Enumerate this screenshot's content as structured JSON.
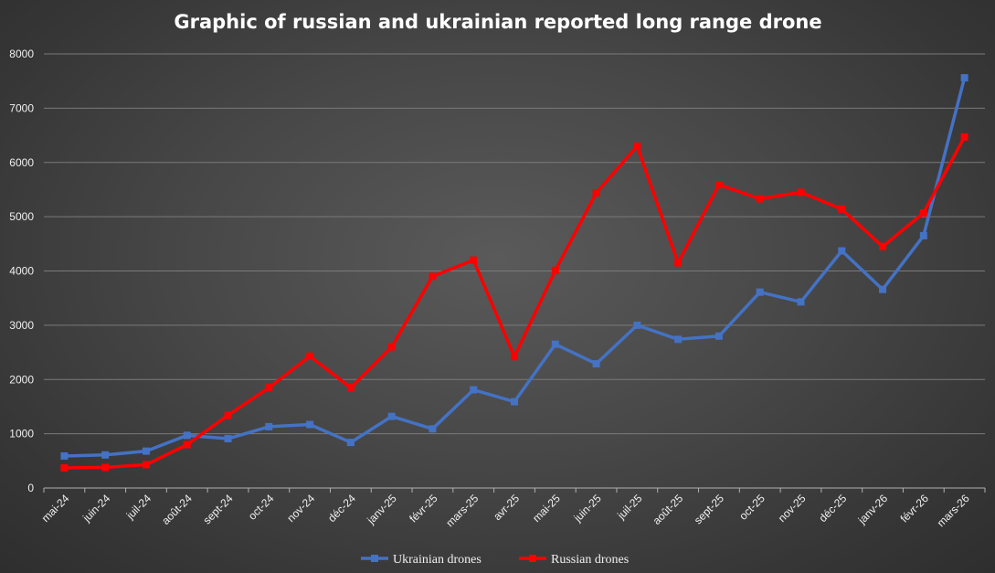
{
  "chart_data": {
    "type": "line",
    "title": "Graphic of russian and ukrainian reported long range drone",
    "categories": [
      "mai-24",
      "juin-24",
      "juil-24",
      "août-24",
      "sept-24",
      "oct-24",
      "nov-24",
      "déc-24",
      "janv-25",
      "févr-25",
      "mars-25",
      "avr-25",
      "mai-25",
      "juin-25",
      "juil-25",
      "août-25",
      "sept-25",
      "oct-25",
      "nov-25",
      "déc-25",
      "janv-26",
      "févr-26",
      "mars-26"
    ],
    "ylim": [
      0,
      8000
    ],
    "yticks": [
      "0",
      "1000",
      "2000",
      "3000",
      "4000",
      "5000",
      "6000",
      "7000",
      "8000"
    ],
    "grid": true,
    "legend_position": "bottom",
    "series": [
      {
        "name": "Ukrainian drones",
        "color": "#4472c4",
        "values": [
          590,
          610,
          680,
          970,
          910,
          1130,
          1170,
          840,
          1320,
          1090,
          1810,
          1590,
          2650,
          2290,
          3000,
          2740,
          2800,
          3610,
          3430,
          4370,
          3660,
          4650,
          7560
        ]
      },
      {
        "name": "Russian drones",
        "color": "#ff0000",
        "values": [
          370,
          380,
          430,
          800,
          1340,
          1850,
          2430,
          1850,
          2600,
          3900,
          4200,
          2420,
          4010,
          5440,
          6300,
          4150,
          5590,
          5330,
          5450,
          5140,
          4450,
          5070,
          6470
        ]
      }
    ]
  }
}
